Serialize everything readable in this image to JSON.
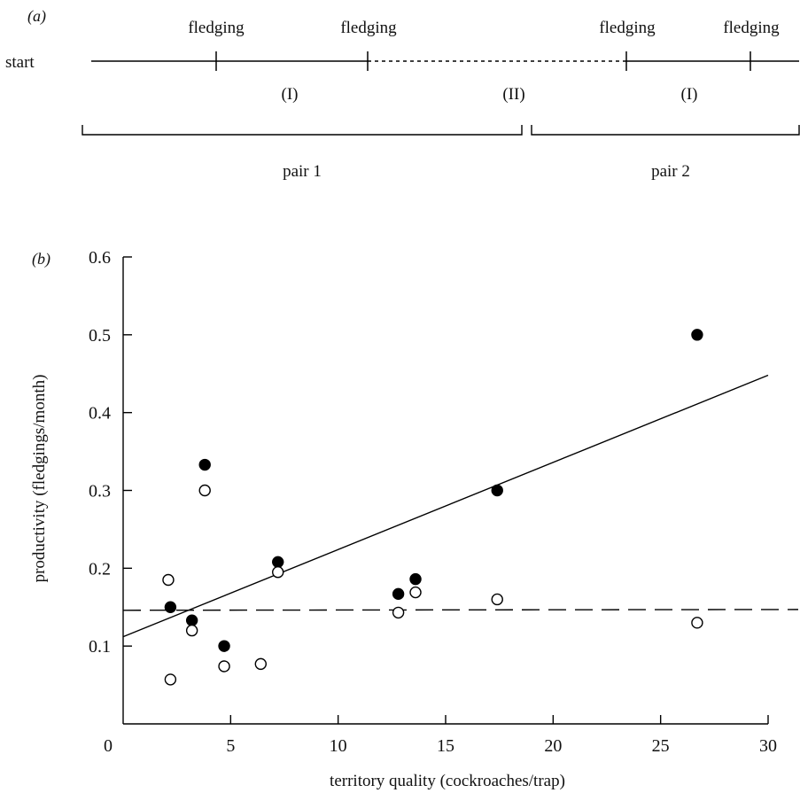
{
  "panel_a": {
    "label": "(a)",
    "start_label": "start",
    "event_labels": [
      "fledging",
      "fledging",
      "fledging",
      "fledging"
    ],
    "period_labels": [
      "(I)",
      "(II)",
      "(I)"
    ],
    "pair_labels": [
      "pair 1",
      "pair 2"
    ]
  },
  "panel_b": {
    "label": "(b)"
  },
  "chart_data": {
    "type": "scatter",
    "title": "",
    "xlabel": "territory quality (cockroaches/trap)",
    "ylabel": "productivity (fledgings/month)",
    "xlim": [
      0,
      30
    ],
    "ylim": [
      0,
      0.6
    ],
    "xticks": [
      0,
      5,
      10,
      15,
      20,
      25,
      30
    ],
    "yticks": [
      0.1,
      0.2,
      0.3,
      0.4,
      0.5,
      0.6
    ],
    "grid": false,
    "series": [
      {
        "marker": "filled-circle",
        "color": "#000000",
        "points": [
          [
            2.2,
            0.15
          ],
          [
            3.2,
            0.133
          ],
          [
            3.8,
            0.333
          ],
          [
            4.7,
            0.1
          ],
          [
            7.2,
            0.208
          ],
          [
            12.8,
            0.167
          ],
          [
            13.6,
            0.186
          ],
          [
            17.4,
            0.3
          ],
          [
            26.7,
            0.5
          ]
        ]
      },
      {
        "marker": "open-circle",
        "color": "#000000",
        "points": [
          [
            2.1,
            0.185
          ],
          [
            2.2,
            0.057
          ],
          [
            3.2,
            0.12
          ],
          [
            3.8,
            0.3
          ],
          [
            4.7,
            0.074
          ],
          [
            6.4,
            0.077
          ],
          [
            7.2,
            0.195
          ],
          [
            12.8,
            0.143
          ],
          [
            13.6,
            0.169
          ],
          [
            17.4,
            0.16
          ],
          [
            26.7,
            0.13
          ]
        ]
      }
    ],
    "lines": [
      {
        "style": "solid",
        "color": "#000000",
        "x": [
          0,
          30
        ],
        "y": [
          0.112,
          0.448
        ]
      },
      {
        "style": "dashed",
        "color": "#000000",
        "x": [
          0,
          31.4
        ],
        "y": [
          0.146,
          0.147
        ]
      }
    ]
  }
}
